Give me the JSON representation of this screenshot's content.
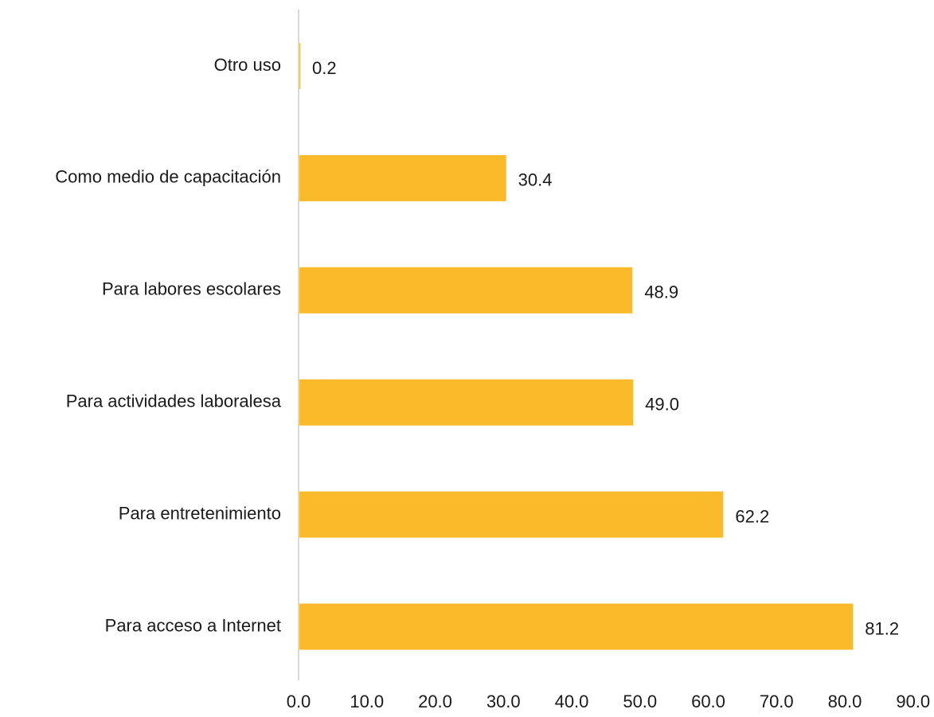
{
  "chart_data": {
    "type": "bar",
    "orientation": "horizontal",
    "categories": [
      "Otro uso",
      "Como medio de capacitación",
      "Para labores escolares",
      "Para actividades laboralesa",
      "Para entretenimiento",
      "Para acceso a Internet"
    ],
    "values": [
      0.2,
      30.4,
      48.9,
      49.0,
      62.2,
      81.2
    ],
    "value_labels": [
      "0.2",
      "30.4",
      "48.9",
      "49.0",
      "62.2",
      "81.2"
    ],
    "xlim": [
      0,
      90
    ],
    "xticks": [
      0,
      10,
      20,
      30,
      40,
      50,
      60,
      70,
      80,
      90
    ],
    "xtick_labels": [
      "0.0",
      "10.0",
      "20.0",
      "30.0",
      "40.0",
      "50.0",
      "60.0",
      "70.0",
      "80.0",
      "90.0"
    ],
    "title": "",
    "xlabel": "",
    "ylabel": "",
    "grid": false,
    "legend": "none",
    "colors": {
      "bar": "#FABA2A",
      "axis": "#d9d9d9",
      "text": "#1a1a1a"
    }
  }
}
